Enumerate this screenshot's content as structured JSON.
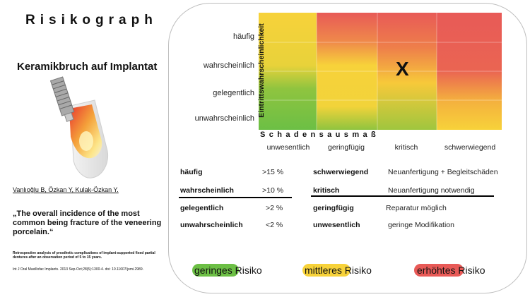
{
  "title": "Risikograph",
  "subtitle": "Keramikbruch auf Implantat",
  "authors": "Vanlıoğlu B, Özkan Y, Kulak-Özkan Y.",
  "quote": "„The overall incidence of the most common being fracture of the veneering porcelain.“",
  "reference_title": "Retrospective analysis of prosthetic complications of implant-supported fixed partial dentures after an observation period of 5 to 15 years.",
  "reference_citation": "Int J Oral Maxillofac Implants. 2013 Sep-Oct;28(5):1300-4. doi: 10.11607/jomi.2989.",
  "matrix": {
    "y_title": "Eintrittswahrscheinlichkeit",
    "x_title": "Schadensausmaß",
    "rows": [
      "häufig",
      "wahrscheinlich",
      "gelegentlich",
      "unwahrscheinlich"
    ],
    "cols": [
      "unwesentlich",
      "geringfügig",
      "kritisch",
      "schwerwiegend"
    ],
    "marker": "X",
    "marker_cell": {
      "row": "wahrscheinlich",
      "col": "kritisch"
    },
    "colors": {
      "green": "#6cbf45",
      "yellow": "#f7d23a",
      "red": "#e85a57"
    }
  },
  "probability_table": [
    {
      "term": "häufig",
      "value": ">15 %"
    },
    {
      "term": "wahrscheinlich",
      "value": ">10 %"
    },
    {
      "term": "gelegentlich",
      "value": ">2 %"
    },
    {
      "term": "unwahrscheinlich",
      "value": "<2 %"
    }
  ],
  "severity_table": [
    {
      "term": "schwerwiegend",
      "desc": "Neuanfertigung + Begleitschäden"
    },
    {
      "term": "kritisch",
      "desc": "Neuanfertigung notwendig"
    },
    {
      "term": "geringfügig",
      "desc": "Reparatur möglich"
    },
    {
      "term": "unwesentlich",
      "desc": "geringe Modifikation"
    }
  ],
  "legend": {
    "risk_word": "Risiko",
    "items": [
      {
        "label": "geringes",
        "color": "#6cbf45"
      },
      {
        "label": "mittleres",
        "color": "#f7d23a"
      },
      {
        "label": "erhöhtes",
        "color": "#e85a57"
      }
    ]
  }
}
